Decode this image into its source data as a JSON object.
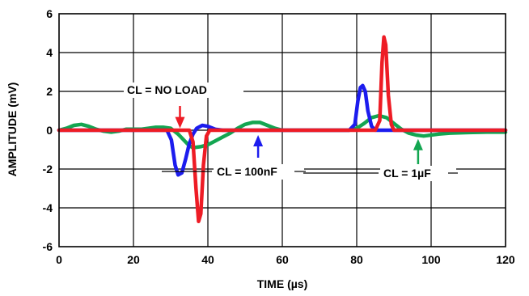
{
  "chart_data": {
    "type": "line",
    "xlabel": "TIME (µs)",
    "ylabel": "AMPLITUDE (mV)",
    "xlim": [
      0,
      120
    ],
    "ylim": [
      -6,
      6
    ],
    "xticks": [
      0,
      20,
      40,
      60,
      80,
      100,
      120
    ],
    "yticks": [
      6,
      4,
      2,
      0,
      -2,
      -4,
      -6
    ],
    "grid": true,
    "series": [
      {
        "name": "CL = NO LOAD",
        "color": "#ee1c25",
        "points": [
          [
            0,
            0
          ],
          [
            32,
            0
          ],
          [
            35,
            0
          ],
          [
            36,
            -0.6
          ],
          [
            36.8,
            -3.0
          ],
          [
            37.5,
            -4.7
          ],
          [
            38.1,
            -4.3
          ],
          [
            38.8,
            -1.8
          ],
          [
            39.6,
            -0.3
          ],
          [
            40.5,
            0
          ],
          [
            85,
            0
          ],
          [
            86.2,
            0.5
          ],
          [
            86.8,
            3.5
          ],
          [
            87.3,
            4.8
          ],
          [
            87.8,
            4.4
          ],
          [
            88.5,
            1.8
          ],
          [
            89.3,
            0.3
          ],
          [
            90,
            0
          ],
          [
            120,
            0
          ]
        ]
      },
      {
        "name": "CL = 100nF",
        "color": "#1c1cee",
        "points": [
          [
            0,
            0
          ],
          [
            29,
            0
          ],
          [
            30.2,
            -0.5
          ],
          [
            31.2,
            -1.8
          ],
          [
            32,
            -2.3
          ],
          [
            33,
            -2.2
          ],
          [
            34,
            -1.5
          ],
          [
            35,
            -0.7
          ],
          [
            36,
            -0.2
          ],
          [
            37,
            0.1
          ],
          [
            38.5,
            0.25
          ],
          [
            40,
            0.2
          ],
          [
            42,
            0.05
          ],
          [
            44,
            0
          ],
          [
            78,
            0
          ],
          [
            79.5,
            0.3
          ],
          [
            80.3,
            1.5
          ],
          [
            81,
            2.2
          ],
          [
            81.6,
            2.3
          ],
          [
            82.3,
            2.0
          ],
          [
            83,
            1.0
          ],
          [
            84,
            0.2
          ],
          [
            85,
            0
          ],
          [
            120,
            0
          ]
        ]
      },
      {
        "name": "CL = 1µF",
        "color": "#13a651",
        "points": [
          [
            0,
            0
          ],
          [
            2,
            0.1
          ],
          [
            4,
            0.25
          ],
          [
            6,
            0.3
          ],
          [
            8,
            0.2
          ],
          [
            10,
            0.05
          ],
          [
            12,
            -0.05
          ],
          [
            14,
            -0.1
          ],
          [
            16,
            -0.05
          ],
          [
            18,
            0.05
          ],
          [
            20,
            0.05
          ],
          [
            22,
            0.05
          ],
          [
            24,
            0.1
          ],
          [
            26,
            0.15
          ],
          [
            28,
            0.15
          ],
          [
            30,
            0.1
          ],
          [
            32,
            -0.2
          ],
          [
            34,
            -0.6
          ],
          [
            35,
            -0.8
          ],
          [
            36,
            -0.9
          ],
          [
            38,
            -0.85
          ],
          [
            40,
            -0.75
          ],
          [
            42,
            -0.55
          ],
          [
            44,
            -0.35
          ],
          [
            46,
            -0.15
          ],
          [
            48,
            0.1
          ],
          [
            50,
            0.3
          ],
          [
            52,
            0.4
          ],
          [
            54,
            0.4
          ],
          [
            56,
            0.25
          ],
          [
            58,
            0.1
          ],
          [
            60,
            0
          ],
          [
            62,
            0
          ],
          [
            65,
            0
          ],
          [
            70,
            0
          ],
          [
            75,
            0
          ],
          [
            78,
            0
          ],
          [
            80,
            0.1
          ],
          [
            82,
            0.35
          ],
          [
            84,
            0.65
          ],
          [
            86,
            0.75
          ],
          [
            88,
            0.65
          ],
          [
            90,
            0.35
          ],
          [
            92,
            0.05
          ],
          [
            94,
            -0.15
          ],
          [
            96,
            -0.25
          ],
          [
            98,
            -0.3
          ],
          [
            100,
            -0.25
          ],
          [
            102,
            -0.2
          ],
          [
            105,
            -0.15
          ],
          [
            110,
            -0.12
          ],
          [
            115,
            -0.1
          ],
          [
            120,
            -0.1
          ]
        ]
      }
    ],
    "annotations": [
      {
        "text": "CL = NO LOAD",
        "series": 0,
        "arrow_to": [
          32.5,
          0.1
        ]
      },
      {
        "text": "CL = 100nF",
        "series": 1,
        "arrow_to": [
          53.5,
          -0.25
        ]
      },
      {
        "text": "CL = 1µF",
        "series": 2,
        "arrow_to": [
          96.5,
          -0.45
        ]
      }
    ]
  }
}
